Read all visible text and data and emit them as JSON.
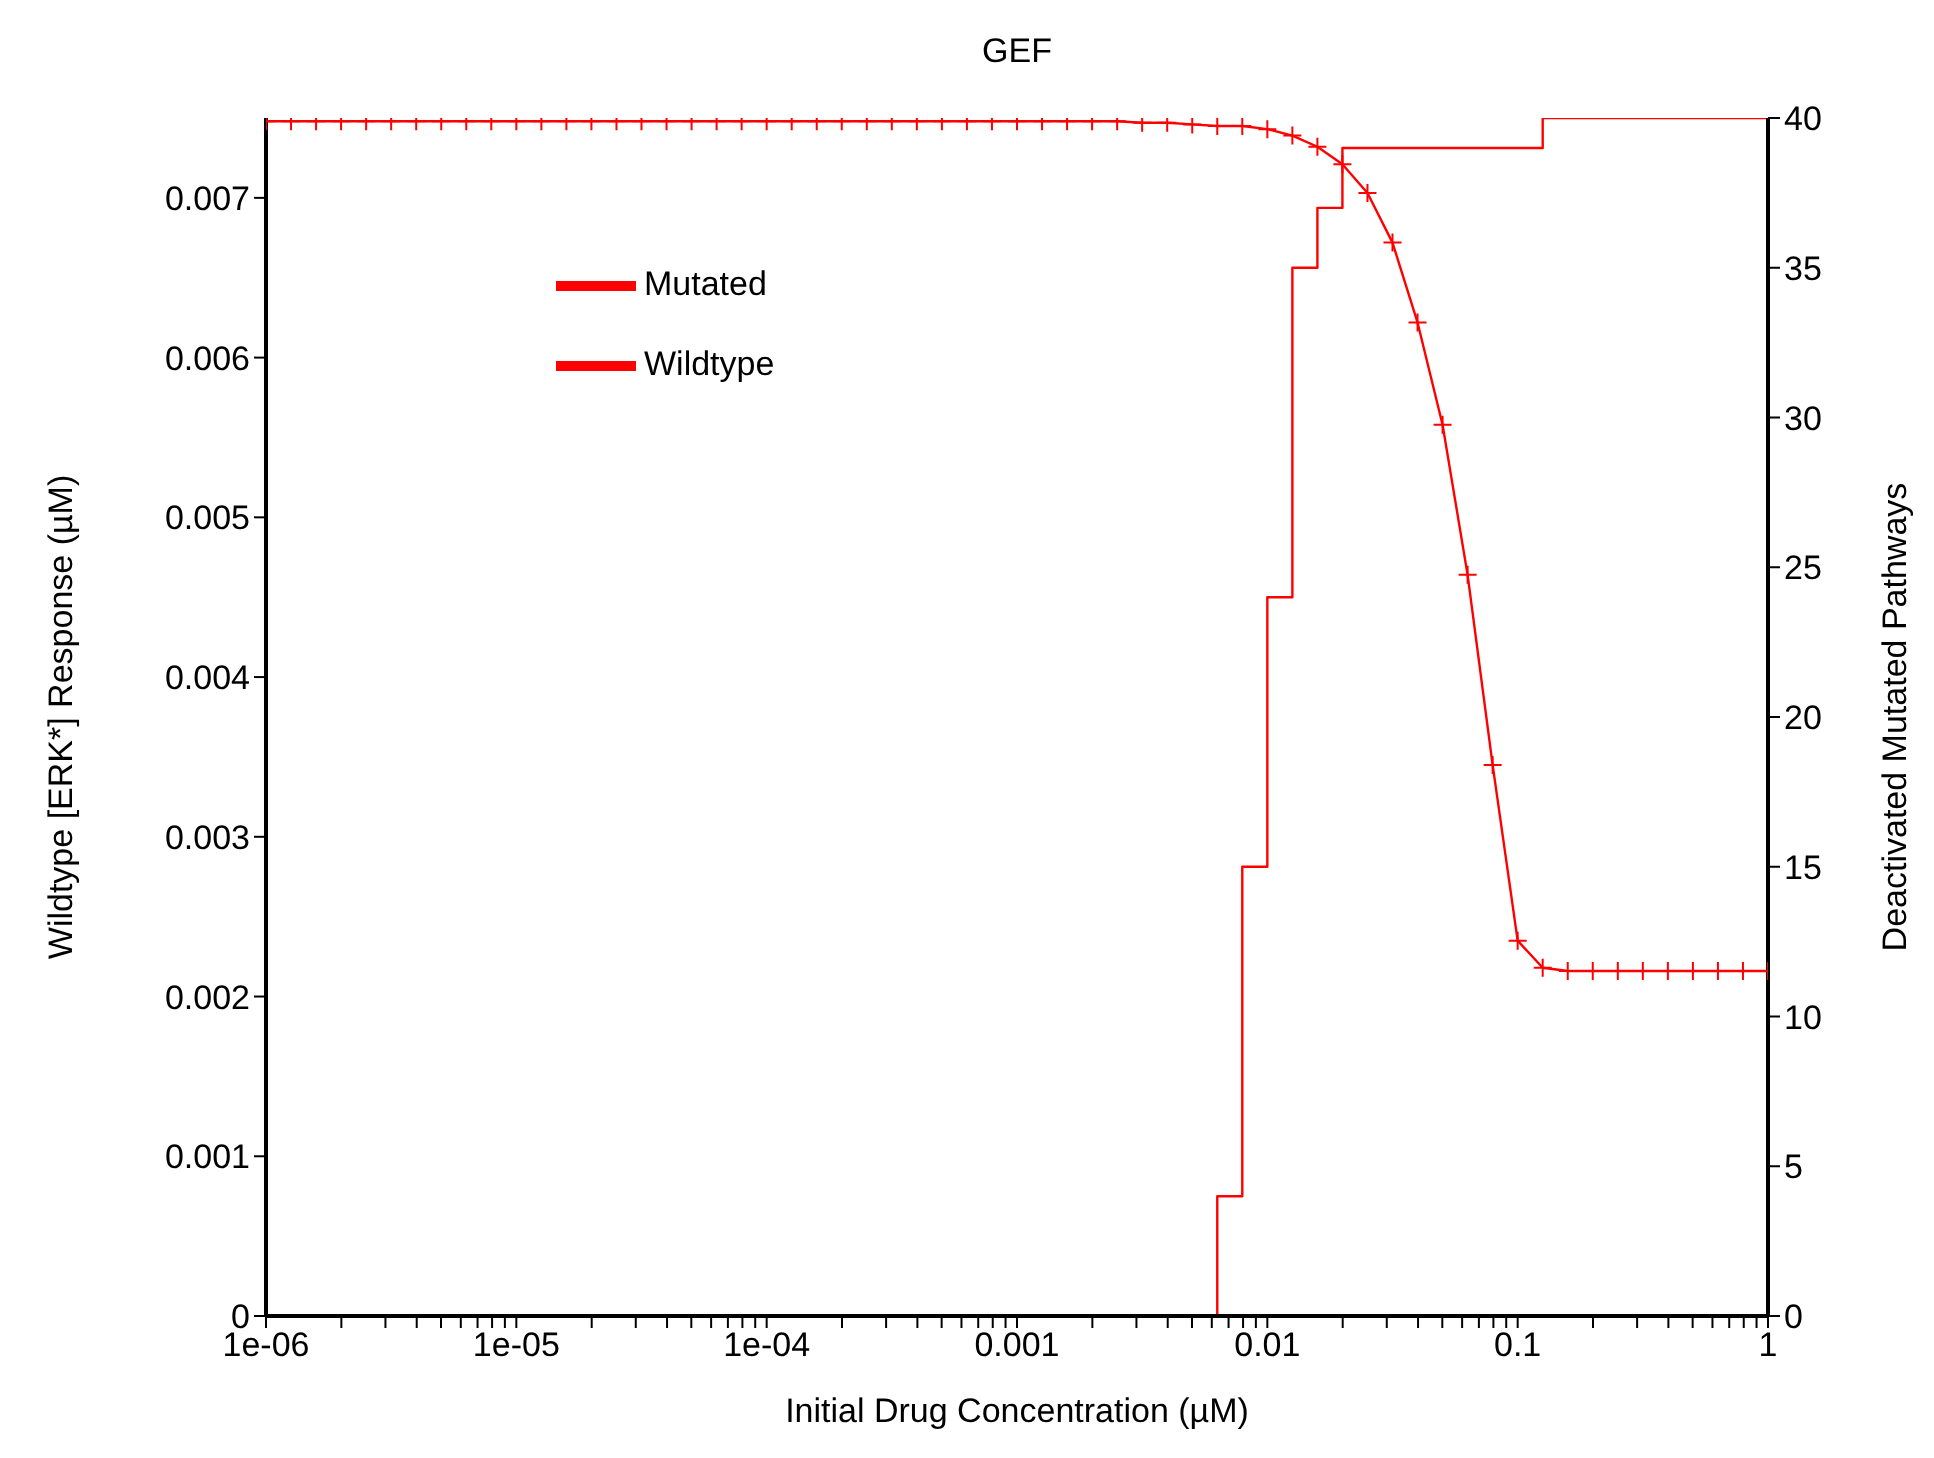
{
  "chart_data": {
    "type": "line",
    "title": "GEF",
    "xlabel": "Initial Drug Concentration (µM)",
    "ylabel": "Wildtype [ERK*] Response (µM)",
    "y2label": "Deactivated Mutated Pathways",
    "log": "x",
    "grid": false,
    "legend": "top left",
    "xlim": [
      1e-06,
      1
    ],
    "xticks": [
      {
        "value": 1e-06,
        "label": "1e-06"
      },
      {
        "value": 2e-06,
        "label": null
      },
      {
        "value": 3e-06,
        "label": null
      },
      {
        "value": 4e-06,
        "label": null
      },
      {
        "value": 5e-06,
        "label": null
      },
      {
        "value": 6e-06,
        "label": null
      },
      {
        "value": 7e-06,
        "label": null
      },
      {
        "value": 8e-06,
        "label": null
      },
      {
        "value": 9e-06,
        "label": null
      },
      {
        "value": 1e-05,
        "label": "1e-05"
      },
      {
        "value": 2e-05,
        "label": null
      },
      {
        "value": 3e-05,
        "label": null
      },
      {
        "value": 4e-05,
        "label": null
      },
      {
        "value": 5e-05,
        "label": null
      },
      {
        "value": 6e-05,
        "label": null
      },
      {
        "value": 7e-05,
        "label": null
      },
      {
        "value": 8e-05,
        "label": null
      },
      {
        "value": 9e-05,
        "label": null
      },
      {
        "value": 0.0001,
        "label": "1e-04"
      },
      {
        "value": 0.0002,
        "label": null
      },
      {
        "value": 0.0003,
        "label": null
      },
      {
        "value": 0.0004,
        "label": null
      },
      {
        "value": 0.0005,
        "label": null
      },
      {
        "value": 0.0006,
        "label": null
      },
      {
        "value": 0.0007,
        "label": null
      },
      {
        "value": 0.0008,
        "label": null
      },
      {
        "value": 0.0009,
        "label": null
      },
      0.001,
      {
        "value": 0.002,
        "label": null
      },
      {
        "value": 0.003,
        "label": null
      },
      {
        "value": 0.004,
        "label": null
      },
      {
        "value": 0.005,
        "label": null
      },
      {
        "value": 0.006,
        "label": null
      },
      {
        "value": 0.007,
        "label": null
      },
      {
        "value": 0.008,
        "label": null
      },
      {
        "value": 0.009,
        "label": null
      },
      0.01,
      {
        "value": 0.02,
        "label": null
      },
      {
        "value": 0.03,
        "label": null
      },
      {
        "value": 0.04,
        "label": null
      },
      {
        "value": 0.05,
        "label": null
      },
      {
        "value": 0.06,
        "label": null
      },
      {
        "value": 0.07,
        "label": null
      },
      {
        "value": 0.08,
        "label": null
      },
      {
        "value": 0.09,
        "label": null
      },
      0.1,
      {
        "value": 0.2,
        "label": null
      },
      {
        "value": 0.3,
        "label": null
      },
      {
        "value": 0.4,
        "label": null
      },
      {
        "value": 0.5,
        "label": null
      },
      {
        "value": 0.6,
        "label": null
      },
      {
        "value": 0.7,
        "label": null
      },
      {
        "value": 0.8,
        "label": null
      },
      {
        "value": 0.9,
        "label": null
      },
      1
    ],
    "ylim": [
      0,
      0.0075
    ],
    "yticks": [
      0,
      0.001,
      0.002,
      0.003,
      0.004,
      0.005,
      0.006,
      0.007
    ],
    "y2lim": [
      0,
      40
    ],
    "y2ticks": [
      0,
      5,
      10,
      15,
      20,
      25,
      30,
      35,
      40
    ],
    "series": [
      {
        "name": "Mutated",
        "type": "step",
        "axis": "y2",
        "color": "#ff0000",
        "marker": "none",
        "x": [
          1e-06,
          0.00631,
          0.007943,
          0.01,
          0.01259,
          0.01585,
          0.01995,
          0.1259,
          1
        ],
        "values": [
          0,
          4,
          15,
          24,
          35,
          37,
          39,
          40,
          40
        ]
      },
      {
        "name": "Wildtype",
        "type": "line",
        "axis": "y",
        "color": "#ff0000",
        "marker": "cross",
        "x": [
          1e-06,
          1.259e-06,
          1.585e-06,
          1.995e-06,
          2.512e-06,
          3.162e-06,
          3.981e-06,
          5.012e-06,
          6.31e-06,
          7.943e-06,
          1e-05,
          1.259e-05,
          1.585e-05,
          1.995e-05,
          2.512e-05,
          3.162e-05,
          3.981e-05,
          5.012e-05,
          6.31e-05,
          7.943e-05,
          0.0001,
          0.0001259,
          0.0001585,
          0.0001995,
          0.0002512,
          0.0003162,
          0.0003981,
          0.0005012,
          0.000631,
          0.0007943,
          0.001,
          0.001259,
          0.001585,
          0.001995,
          0.002512,
          0.003162,
          0.003981,
          0.005012,
          0.00631,
          0.007943,
          0.01,
          0.01259,
          0.01585,
          0.01995,
          0.02512,
          0.03162,
          0.03981,
          0.05012,
          0.0631,
          0.07943,
          0.1,
          0.1259,
          0.1585,
          0.1995,
          0.2512,
          0.3162,
          0.3981,
          0.5012,
          0.631,
          0.7943,
          1
        ],
        "values": [
          0.00748,
          0.00748,
          0.00748,
          0.00748,
          0.00748,
          0.00748,
          0.00748,
          0.00748,
          0.00748,
          0.00748,
          0.00748,
          0.00748,
          0.00748,
          0.00748,
          0.00748,
          0.00748,
          0.00748,
          0.00748,
          0.00748,
          0.00748,
          0.00748,
          0.00748,
          0.00748,
          0.00748,
          0.00748,
          0.00748,
          0.00748,
          0.00748,
          0.00748,
          0.00748,
          0.00748,
          0.00748,
          0.00748,
          0.00748,
          0.00748,
          0.00747,
          0.00747,
          0.00746,
          0.00745,
          0.00745,
          0.00743,
          0.00739,
          0.00732,
          0.00721,
          0.00703,
          0.00672,
          0.00622,
          0.00558,
          0.00464,
          0.00345,
          0.00235,
          0.00218,
          0.00216,
          0.00216,
          0.00216,
          0.00216,
          0.00216,
          0.00216,
          0.00216,
          0.00216,
          0.00216
        ]
      }
    ]
  }
}
